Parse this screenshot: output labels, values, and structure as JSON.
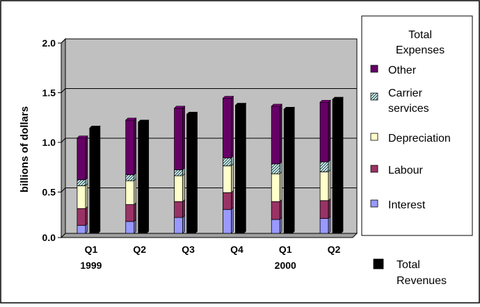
{
  "chart_data": {
    "type": "bar",
    "ylabel": "billions of dollars",
    "ylim": [
      0.0,
      2.0
    ],
    "yticks": [
      "0.0",
      "0.5",
      "1.0",
      "1.5",
      "2.0"
    ],
    "grid": true,
    "legend_position": "right",
    "categories": [
      {
        "quarter": "Q1",
        "year": "1999"
      },
      {
        "quarter": "Q2",
        "year": ""
      },
      {
        "quarter": "Q3",
        "year": ""
      },
      {
        "quarter": "Q4",
        "year": ""
      },
      {
        "quarter": "Q1",
        "year": "2000"
      },
      {
        "quarter": "Q2",
        "year": ""
      }
    ],
    "stack_title": "Total Expenses",
    "stack_series": [
      {
        "name": "Interest",
        "color": "#9999ff",
        "values": [
          0.08,
          0.12,
          0.16,
          0.24,
          0.14,
          0.15
        ]
      },
      {
        "name": "Labour",
        "color": "#993366",
        "values": [
          0.17,
          0.17,
          0.16,
          0.17,
          0.18,
          0.18
        ]
      },
      {
        "name": "Depreciation",
        "color": "#ffffcc",
        "values": [
          0.23,
          0.24,
          0.26,
          0.27,
          0.28,
          0.29
        ]
      },
      {
        "name": "Carrier services",
        "color": "#ccffff",
        "values": [
          0.06,
          0.06,
          0.06,
          0.08,
          0.1,
          0.1
        ]
      },
      {
        "name": "Other",
        "color": "#660066",
        "values": [
          0.42,
          0.55,
          0.62,
          0.6,
          0.58,
          0.6
        ]
      }
    ],
    "revenue_series": {
      "name": "Total Revenues",
      "color": "#000000",
      "values": [
        1.06,
        1.12,
        1.2,
        1.29,
        1.25,
        1.35
      ]
    }
  }
}
